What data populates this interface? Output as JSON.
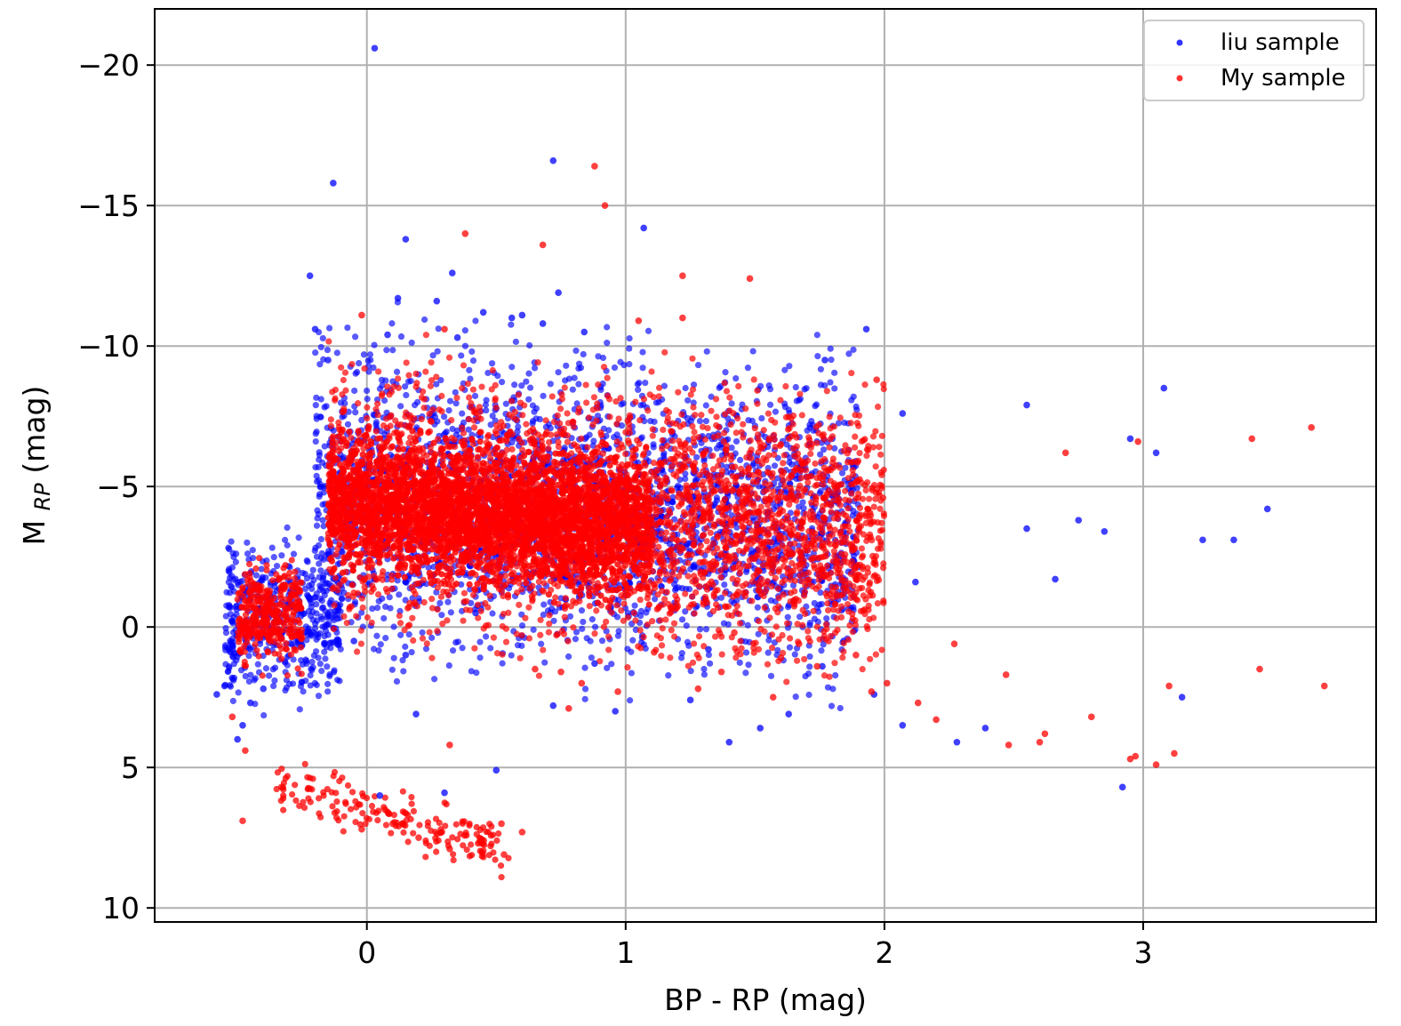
{
  "chart_data": {
    "type": "scatter",
    "xlabel": "BP - RP (mag)",
    "ylabel_main": "M",
    "ylabel_sub": "RP",
    "ylabel_unit": " (mag)",
    "xlim": [
      -0.82,
      3.9
    ],
    "ylim": [
      10.5,
      -22.0
    ],
    "y_inverted": true,
    "grid": true,
    "legend_position": "top-right",
    "xticks": [
      0,
      1,
      2,
      3
    ],
    "xtick_labels": [
      "0",
      "1",
      "2",
      "3"
    ],
    "yticks": [
      -20,
      -15,
      -10,
      -5,
      0,
      5,
      10
    ],
    "ytick_labels": [
      "−20",
      "−15",
      "−10",
      "−5",
      "0",
      "5",
      "10"
    ],
    "series": [
      {
        "name": "liu sample",
        "color": "#0000ff",
        "x": [
          0.03,
          -0.13,
          0.72,
          1.07,
          0.15,
          0.33,
          -0.22,
          0.74,
          0.12,
          0.27,
          0.45,
          0.56,
          0.08,
          -0.2,
          1.93,
          0.35,
          0.68,
          0.84,
          0.6,
          -0.15,
          1.77,
          3.08,
          2.55,
          2.07,
          2.95,
          3.05,
          3.48,
          3.35,
          3.23,
          3.15,
          0.19,
          0.5,
          1.4,
          1.52,
          2.28,
          2.39,
          2.07,
          2.92,
          -0.58,
          -0.55,
          -0.5,
          -0.48,
          -0.45,
          -0.4,
          0.05,
          0.3,
          0.72,
          0.96,
          1.25,
          1.63,
          1.96,
          2.55,
          2.66,
          2.75,
          2.85,
          -0.05,
          0.15,
          0.42,
          0.88,
          1.32,
          1.76,
          2.12
        ],
        "y": [
          -20.6,
          -15.8,
          -16.6,
          -14.2,
          -13.8,
          -12.6,
          -12.5,
          -11.9,
          -11.7,
          -11.6,
          -11.2,
          -11.0,
          -10.4,
          -10.6,
          -10.6,
          -10.3,
          -10.8,
          -10.5,
          -11.1,
          -9.5,
          -9.5,
          -8.5,
          -7.9,
          -7.6,
          -6.7,
          -6.2,
          -4.2,
          -3.1,
          -3.1,
          2.5,
          3.1,
          5.1,
          4.1,
          3.6,
          4.1,
          3.6,
          3.5,
          5.7,
          2.4,
          2.1,
          4.0,
          3.5,
          2.7,
          2.2,
          6.0,
          5.9,
          2.8,
          3.0,
          2.6,
          3.1,
          2.4,
          -3.5,
          -1.7,
          -3.8,
          -3.4,
          0.5,
          1.0,
          -0.5,
          1.3,
          0.8,
          1.4,
          -1.6
        ]
      },
      {
        "name": "My sample",
        "color": "#ff0000",
        "x": [
          0.88,
          0.92,
          0.38,
          0.68,
          1.22,
          1.48,
          -0.02,
          0.3,
          1.05,
          1.22,
          1.97,
          3.42,
          3.65,
          3.7,
          3.45,
          3.1,
          3.05,
          2.97,
          2.98,
          2.7,
          2.62,
          2.48,
          2.27,
          2.2,
          2.01,
          1.95,
          1.57,
          1.28,
          0.78,
          0.97,
          0.32,
          0.52,
          0.6,
          0.07,
          -0.02,
          -0.33,
          -0.48,
          -0.47,
          -0.52,
          0.1,
          0.2,
          0.32,
          0.43,
          0.53,
          0.65,
          0.75,
          0.83,
          1.11,
          1.37,
          1.6,
          1.74,
          1.89,
          2.13,
          2.47,
          2.6,
          2.8,
          2.95,
          3.12,
          1.42,
          1.67
        ],
        "y": [
          -16.4,
          -15.0,
          -14.0,
          -13.6,
          -12.5,
          -12.4,
          -11.1,
          -10.6,
          -10.9,
          -11.0,
          -8.8,
          -6.7,
          -7.1,
          2.1,
          1.5,
          2.1,
          4.9,
          4.6,
          -6.6,
          -6.2,
          3.8,
          4.2,
          0.6,
          3.3,
          2.0,
          2.3,
          2.5,
          2.2,
          2.9,
          2.3,
          4.2,
          7.0,
          7.3,
          6.5,
          7.2,
          5.7,
          6.9,
          4.4,
          3.2,
          7.0,
          7.5,
          7.9,
          7.7,
          8.1,
          1.5,
          1.6,
          2.0,
          0.9,
          1.6,
          1.1,
          1.4,
          1.0,
          2.7,
          1.7,
          4.1,
          3.2,
          4.7,
          4.5,
          0.2,
          0.6
        ]
      }
    ]
  }
}
